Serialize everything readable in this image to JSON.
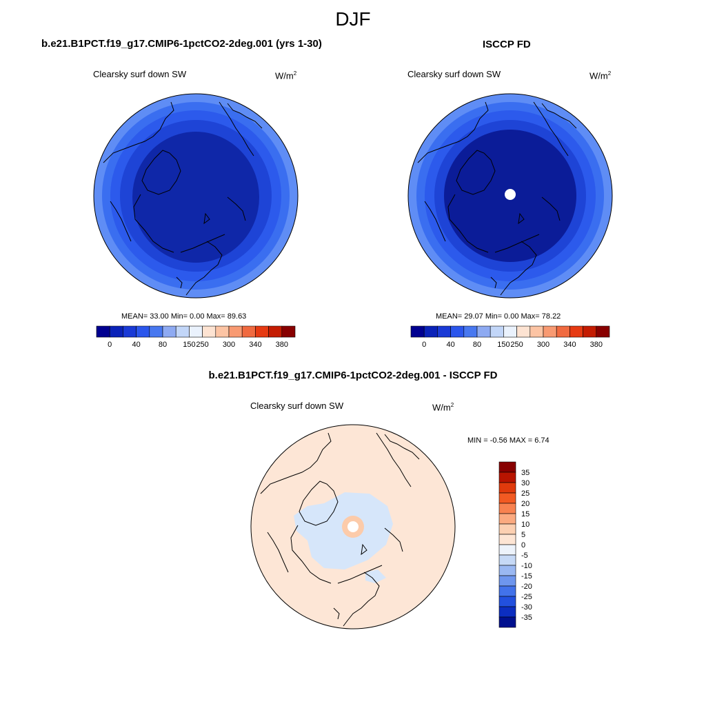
{
  "figure": {
    "season": "DJF"
  },
  "panels": {
    "model": {
      "title": "b.e21.B1PCT.f19_g17.CMIP6-1pctCO2-2deg.001 (yrs 1-30)",
      "variable": "Clearsky surf down SW",
      "units_base": "W/m",
      "units_exp": "2",
      "stats": "MEAN=  33.00  Min=   0.00  Max=  89.63"
    },
    "obs": {
      "title": "ISCCP FD",
      "variable": "Clearsky surf down SW",
      "units_base": "W/m",
      "units_exp": "2",
      "stats": "MEAN=  29.07  Min=   0.00  Max=  78.22"
    },
    "diff": {
      "title": "b.e21.B1PCT.f19_g17.CMIP6-1pctCO2-2deg.001 - ISCCP FD",
      "variable": "Clearsky surf down SW",
      "units_base": "W/m",
      "units_exp": "2",
      "stats": "MIN =  -0.56 MAX =   6.74"
    }
  },
  "colorbars": {
    "main": {
      "colors": [
        "#000090",
        "#0a22b8",
        "#1a3ad6",
        "#2b56ec",
        "#4878f0",
        "#8eaaf2",
        "#c2d6f8",
        "#eaf2fd",
        "#fde3d2",
        "#fcc4a4",
        "#f89a72",
        "#f06a40",
        "#e63a12",
        "#c41c02",
        "#880000"
      ],
      "tick_labels": [
        "0",
        "40",
        "80",
        "150",
        "250",
        "300",
        "340",
        "380"
      ]
    },
    "diff": {
      "colors": [
        "#880000",
        "#b81400",
        "#e03a0c",
        "#f25a22",
        "#f88250",
        "#fbaa80",
        "#fcd0b2",
        "#fde5d4",
        "#edf3fb",
        "#c6d9f6",
        "#9ab8f2",
        "#6e96ee",
        "#4272ea",
        "#2250de",
        "#0c2ec0",
        "#00108e"
      ],
      "labels": [
        "35",
        "30",
        "25",
        "20",
        "15",
        "10",
        "5",
        "0",
        "-5",
        "-10",
        "-15",
        "-20",
        "-25",
        "-30",
        "-35"
      ]
    }
  },
  "map_colors": {
    "ring_outer": "#5f8df5",
    "ring_2": "#3a6ef0",
    "ring_3": "#2c5aec",
    "ring_4": "#1e44d6",
    "core_model": "#0f27a8",
    "core_obs": "#0b1c98",
    "diff_bg": "#fde6d6",
    "diff_blue": "#d6e6fa",
    "diff_pole": "#fccbaa",
    "diff_warm": "#fbc8a8"
  }
}
